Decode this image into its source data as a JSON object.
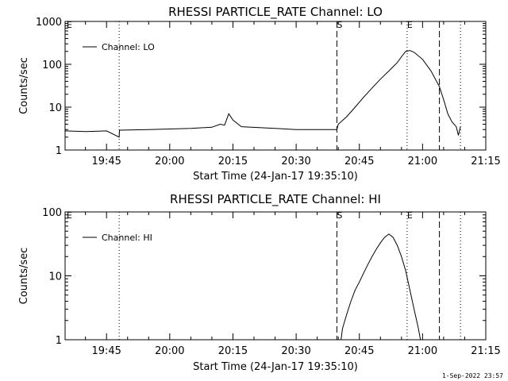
{
  "footer": {
    "stamp": "1-Sep-2022 23:57"
  },
  "chart_data": [
    {
      "type": "line",
      "title": "RHESSI PARTICLE_RATE Channel: LO",
      "xlabel": "Start Time (24-Jan-17 19:35:10)",
      "ylabel": "Counts/sec",
      "yscale": "log",
      "ylim": [
        1,
        1000
      ],
      "xlim": [
        "19:35:10",
        "21:15:00"
      ],
      "x_ticks": [
        "19:45",
        "20:00",
        "20:15",
        "20:30",
        "20:45",
        "21:00",
        "21:15"
      ],
      "y_ticks": [
        "1",
        "10",
        "100",
        "1000"
      ],
      "legend": {
        "position": "top-left",
        "entries": [
          "Channel: LO"
        ]
      },
      "markers": [
        {
          "label": "E",
          "time": "19:35:10",
          "style": "none"
        },
        {
          "label": "",
          "time": "19:48:00",
          "style": "dotted"
        },
        {
          "label": "S",
          "time": "20:39:40",
          "style": "dashed"
        },
        {
          "label": "E",
          "time": "20:56:20",
          "style": "dotted"
        },
        {
          "label": "",
          "time": "21:04:00",
          "style": "dashed"
        },
        {
          "label": "",
          "time": "21:09:00",
          "style": "dotted"
        }
      ],
      "series": [
        {
          "name": "Channel: LO",
          "x": [
            "19:35:10",
            "19:40:00",
            "19:45:00",
            "19:48:00",
            "19:48:05",
            "19:55:00",
            "20:05:00",
            "20:10:00",
            "20:12:00",
            "20:13:00",
            "20:14:00",
            "20:15:00",
            "20:17:00",
            "20:25:00",
            "20:30:00",
            "20:35:00",
            "20:39:40",
            "20:40:00",
            "20:42:00",
            "20:44:00",
            "20:46:00",
            "20:48:00",
            "20:50:00",
            "20:52:00",
            "20:54:00",
            "20:55:00",
            "20:56:00",
            "20:57:00",
            "20:58:00",
            "21:00:00",
            "21:02:00",
            "21:04:00",
            "21:05:00",
            "21:06:00",
            "21:07:00",
            "21:08:00",
            "21:08:30",
            "21:09:00"
          ],
          "y": [
            2.8,
            2.7,
            2.8,
            2.0,
            2.9,
            3.0,
            3.2,
            3.4,
            4.0,
            3.8,
            7.0,
            5.0,
            3.5,
            3.2,
            3.0,
            3.0,
            3.0,
            4.0,
            6.0,
            10.0,
            17.0,
            28.0,
            45.0,
            70.0,
            110.0,
            150.0,
            200.0,
            210.0,
            190.0,
            130.0,
            70.0,
            30.0,
            15.0,
            7.0,
            4.5,
            3.5,
            2.2,
            3.5
          ]
        }
      ]
    },
    {
      "type": "line",
      "title": "RHESSI PARTICLE_RATE Channel: HI",
      "xlabel": "Start Time (24-Jan-17 19:35:10)",
      "ylabel": "Counts/sec",
      "yscale": "log",
      "ylim": [
        1,
        100
      ],
      "xlim": [
        "19:35:10",
        "21:15:00"
      ],
      "x_ticks": [
        "19:45",
        "20:00",
        "20:15",
        "20:30",
        "20:45",
        "21:00",
        "21:15"
      ],
      "y_ticks": [
        "1",
        "10",
        "100"
      ],
      "legend": {
        "position": "top-left",
        "entries": [
          "Channel: HI"
        ]
      },
      "markers": [
        {
          "label": "E",
          "time": "19:35:10",
          "style": "none"
        },
        {
          "label": "",
          "time": "19:48:00",
          "style": "dotted"
        },
        {
          "label": "S",
          "time": "20:39:40",
          "style": "dashed"
        },
        {
          "label": "E",
          "time": "20:56:20",
          "style": "dotted"
        },
        {
          "label": "",
          "time": "21:04:00",
          "style": "dashed"
        },
        {
          "label": "",
          "time": "21:09:00",
          "style": "dotted"
        }
      ],
      "series": [
        {
          "name": "Channel: HI",
          "x": [
            "20:40:40",
            "20:41:00",
            "20:42:00",
            "20:43:00",
            "20:44:00",
            "20:45:00",
            "20:46:00",
            "20:47:00",
            "20:48:00",
            "20:49:00",
            "20:50:00",
            "20:51:00",
            "20:52:00",
            "20:53:00",
            "20:54:00",
            "20:55:00",
            "20:56:00",
            "20:57:00",
            "20:58:00",
            "20:59:00",
            "20:59:30"
          ],
          "y": [
            1.0,
            1.5,
            2.5,
            4.0,
            6.0,
            8.0,
            11.0,
            15.0,
            20.0,
            26.0,
            33.0,
            40.0,
            45.0,
            40.0,
            30.0,
            20.0,
            12.0,
            6.0,
            3.0,
            1.5,
            1.0
          ]
        }
      ]
    }
  ]
}
